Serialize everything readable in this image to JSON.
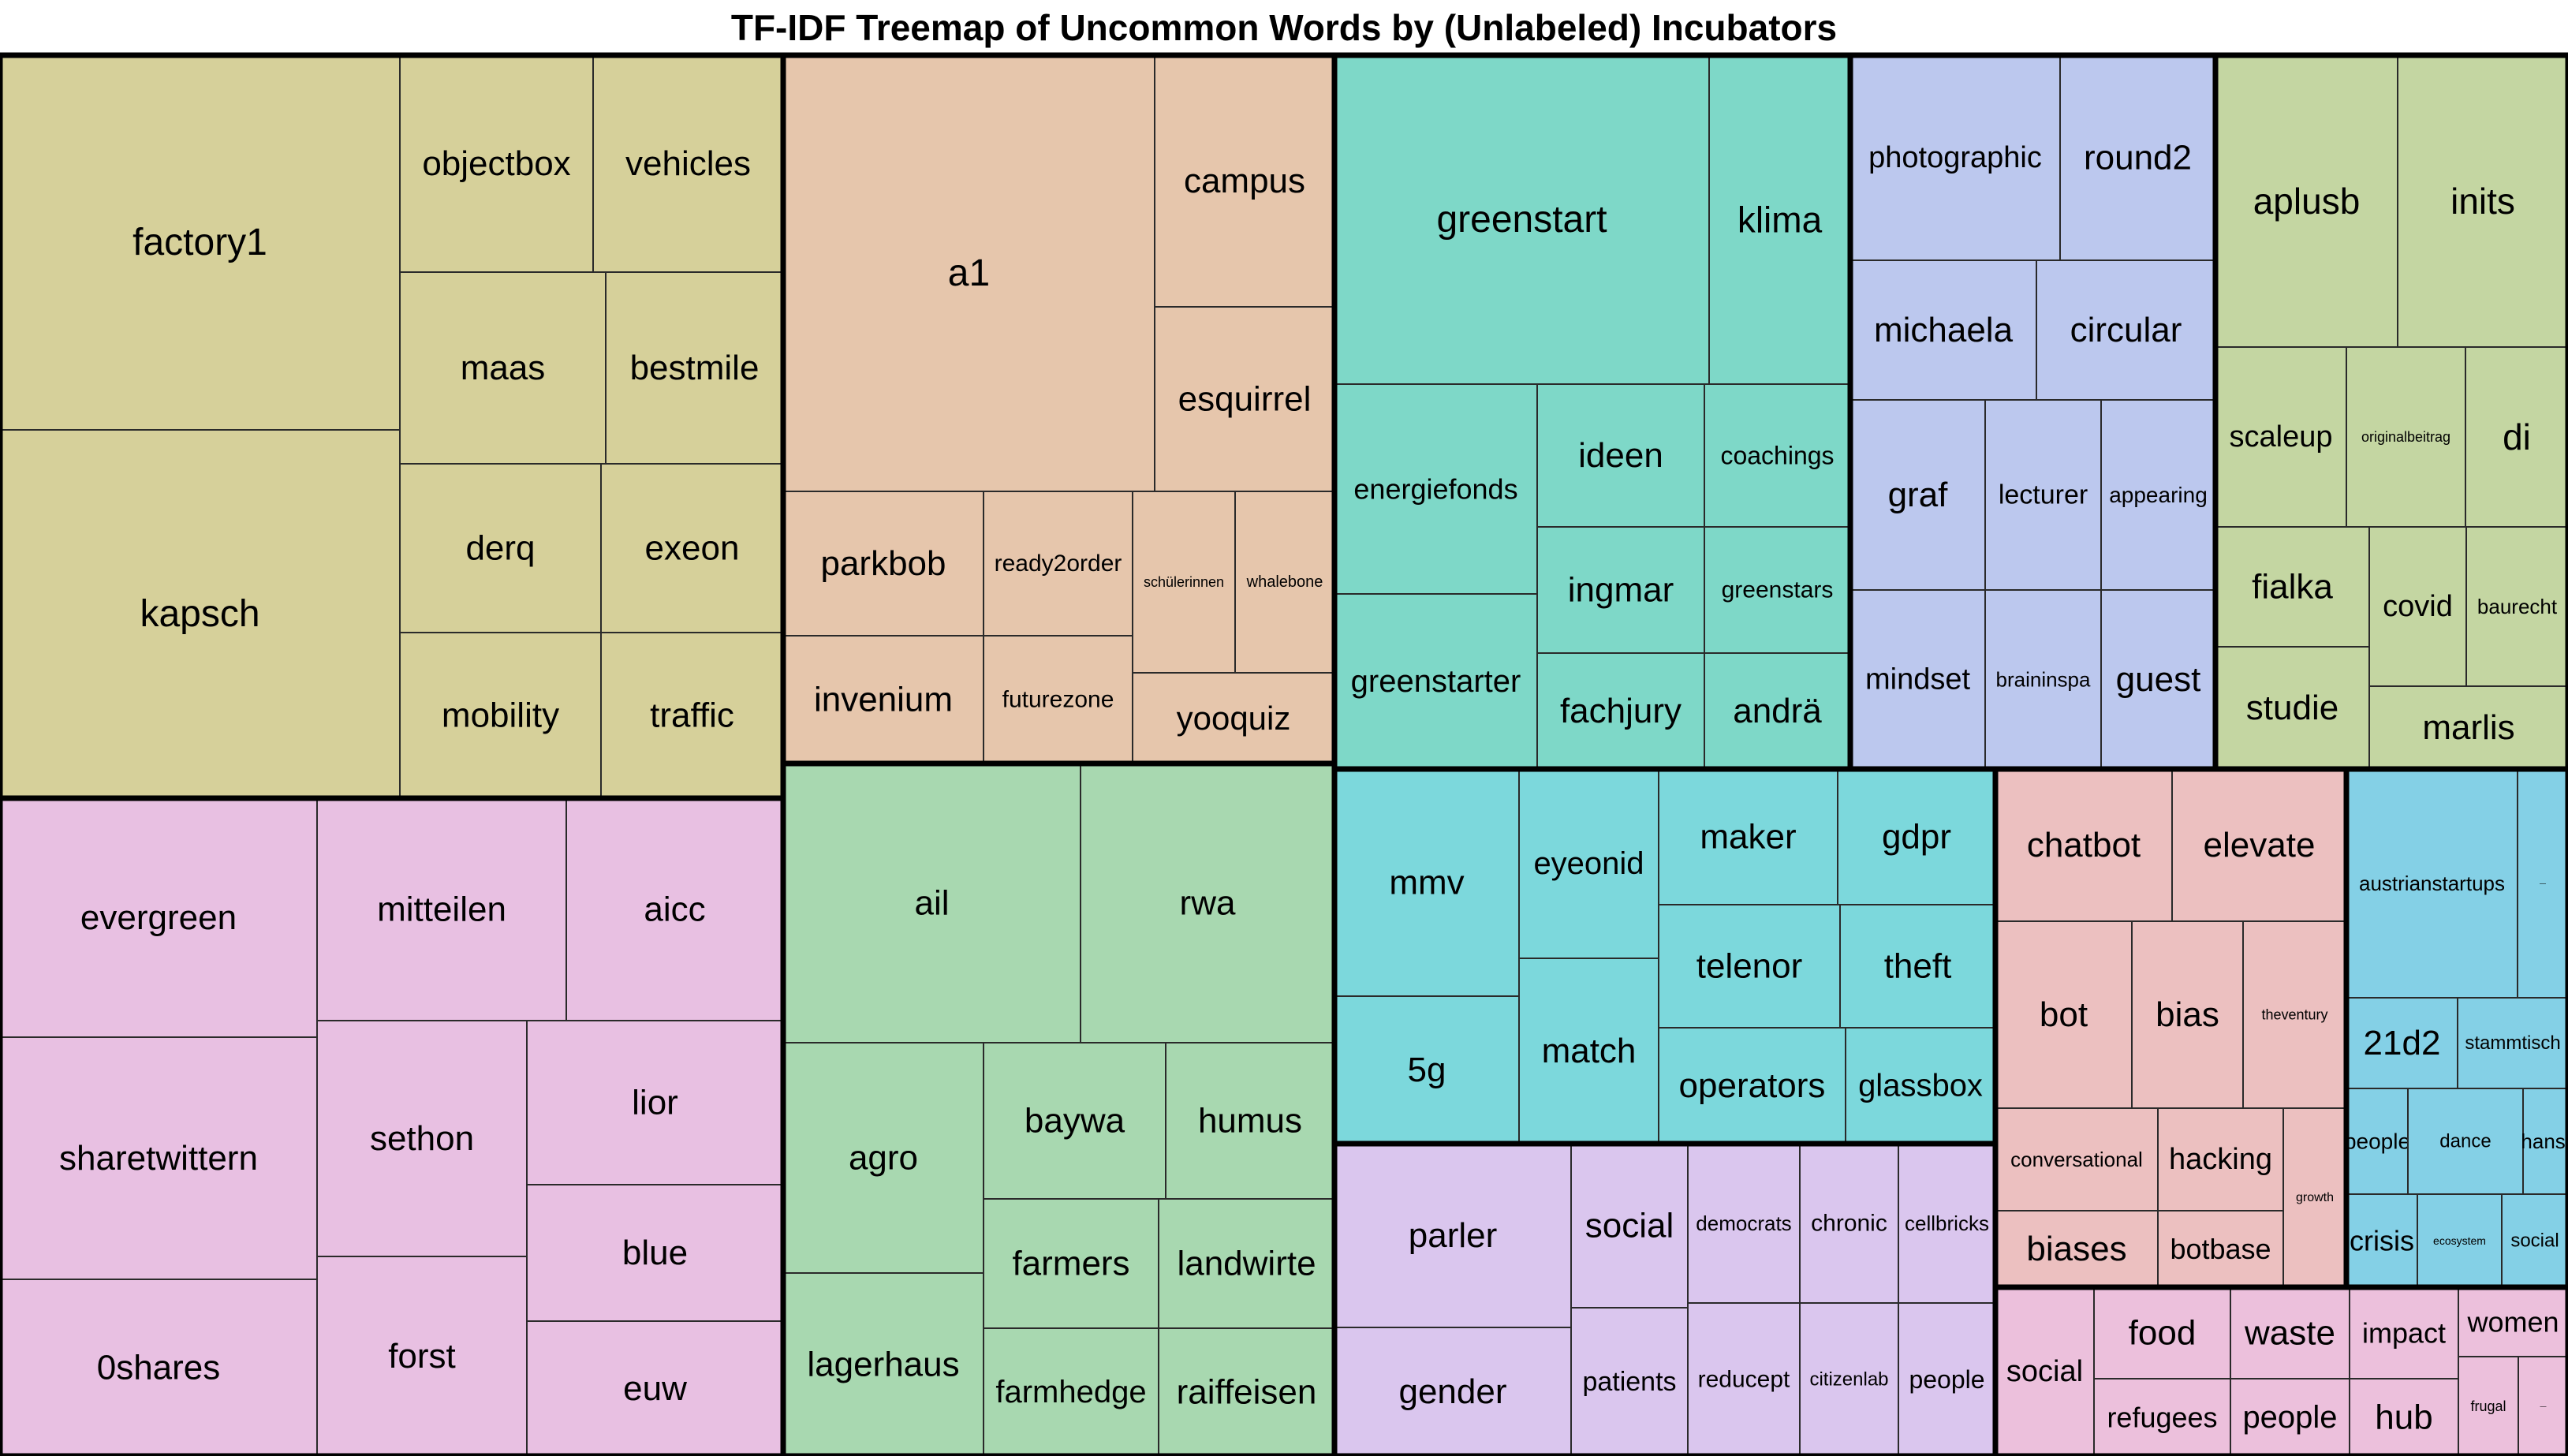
{
  "chart_data": {
    "type": "treemap",
    "title": "TF-IDF Treemap of Uncommon Words by (Unlabeled) Incubators",
    "groups": [
      {
        "color": "#d6d09a",
        "items": [
          {
            "label": "factory1"
          },
          {
            "label": "kapsch"
          },
          {
            "label": "objectbox"
          },
          {
            "label": "vehicles"
          },
          {
            "label": "maas"
          },
          {
            "label": "bestmile"
          },
          {
            "label": "derq"
          },
          {
            "label": "exeon"
          },
          {
            "label": "mobility"
          },
          {
            "label": "traffic"
          }
        ]
      },
      {
        "color": "#e6c6ac",
        "items": [
          {
            "label": "a1"
          },
          {
            "label": "campus"
          },
          {
            "label": "esquirrel"
          },
          {
            "label": "parkbob"
          },
          {
            "label": "ready2order"
          },
          {
            "label": "schülerinnen"
          },
          {
            "label": "whalebone"
          },
          {
            "label": "invenium"
          },
          {
            "label": "futurezone"
          },
          {
            "label": "yooquiz"
          }
        ]
      },
      {
        "color": "#7ed8c8",
        "items": [
          {
            "label": "greenstart"
          },
          {
            "label": "klima"
          },
          {
            "label": "energiefonds"
          },
          {
            "label": "ideen"
          },
          {
            "label": "coachings"
          },
          {
            "label": "ingmar"
          },
          {
            "label": "greenstars"
          },
          {
            "label": "greenstarter"
          },
          {
            "label": "fachjury"
          },
          {
            "label": "andrä"
          }
        ]
      },
      {
        "color": "#bcc8ee",
        "items": [
          {
            "label": "photographic"
          },
          {
            "label": "round2"
          },
          {
            "label": "michaela"
          },
          {
            "label": "circular"
          },
          {
            "label": "graf"
          },
          {
            "label": "lecturer"
          },
          {
            "label": "appearing"
          },
          {
            "label": "mindset"
          },
          {
            "label": "braininspa"
          },
          {
            "label": "guest"
          }
        ]
      },
      {
        "color": "#c4d6a2",
        "items": [
          {
            "label": "aplusb"
          },
          {
            "label": "inits"
          },
          {
            "label": "scaleup"
          },
          {
            "label": "originalbeitrag"
          },
          {
            "label": "di"
          },
          {
            "label": "fialka"
          },
          {
            "label": "covid"
          },
          {
            "label": "baurecht"
          },
          {
            "label": "studie"
          },
          {
            "label": "marlis"
          }
        ]
      },
      {
        "color": "#e8c0e2",
        "items": [
          {
            "label": "evergreen"
          },
          {
            "label": "mitteilen"
          },
          {
            "label": "aicc"
          },
          {
            "label": "sharetwittern"
          },
          {
            "label": "sethon"
          },
          {
            "label": "lior"
          },
          {
            "label": "blue"
          },
          {
            "label": "0shares"
          },
          {
            "label": "forst"
          },
          {
            "label": "euw"
          }
        ]
      },
      {
        "color": "#a8d8b0",
        "items": [
          {
            "label": "ail"
          },
          {
            "label": "rwa"
          },
          {
            "label": "agro"
          },
          {
            "label": "baywa"
          },
          {
            "label": "humus"
          },
          {
            "label": "lagerhaus"
          },
          {
            "label": "farmers"
          },
          {
            "label": "landwirte"
          },
          {
            "label": "farmhedge"
          },
          {
            "label": "raiffeisen"
          }
        ]
      },
      {
        "color": "#7cd8dc",
        "items": [
          {
            "label": "mmv"
          },
          {
            "label": "eyeonid"
          },
          {
            "label": "maker"
          },
          {
            "label": "gdpr"
          },
          {
            "label": "telenor"
          },
          {
            "label": "theft"
          },
          {
            "label": "5g"
          },
          {
            "label": "match"
          },
          {
            "label": "operators"
          },
          {
            "label": "glassbox"
          }
        ]
      },
      {
        "color": "#ecc0c0",
        "items": [
          {
            "label": "chatbot"
          },
          {
            "label": "elevate"
          },
          {
            "label": "bot"
          },
          {
            "label": "bias"
          },
          {
            "label": "theventury"
          },
          {
            "label": "conversational"
          },
          {
            "label": "hacking"
          },
          {
            "label": "growth"
          },
          {
            "label": "biases"
          },
          {
            "label": "botbase"
          }
        ]
      },
      {
        "color": "#84d0e6",
        "items": [
          {
            "label": "austrianstartups"
          },
          {
            "label": "—"
          },
          {
            "label": "21d2"
          },
          {
            "label": "stammtisch"
          },
          {
            "label": "people"
          },
          {
            "label": "dance"
          },
          {
            "label": "hansi"
          },
          {
            "label": "crisis"
          },
          {
            "label": "ecosystem"
          },
          {
            "label": "social"
          }
        ]
      },
      {
        "color": "#dac6ee",
        "items": [
          {
            "label": "parler"
          },
          {
            "label": "social"
          },
          {
            "label": "democrats"
          },
          {
            "label": "chronic"
          },
          {
            "label": "cellbricks"
          },
          {
            "label": "gender"
          },
          {
            "label": "patients"
          },
          {
            "label": "reducept"
          },
          {
            "label": "citizenlab"
          },
          {
            "label": "people"
          }
        ]
      },
      {
        "color": "#ecc0dc",
        "items": [
          {
            "label": "social"
          },
          {
            "label": "food"
          },
          {
            "label": "waste"
          },
          {
            "label": "impact"
          },
          {
            "label": "women"
          },
          {
            "label": "refugees"
          },
          {
            "label": "people"
          },
          {
            "label": "hub"
          },
          {
            "label": "frugal"
          },
          {
            "label": "—"
          }
        ]
      }
    ]
  }
}
